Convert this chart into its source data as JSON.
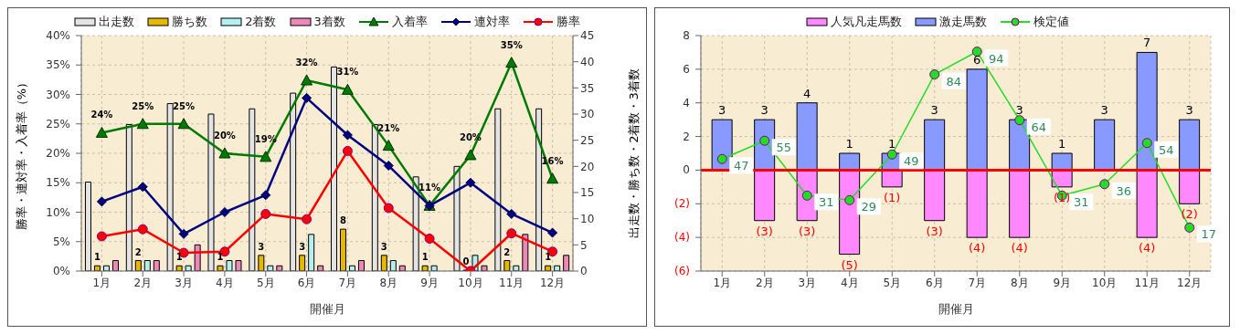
{
  "chart_data": [
    {
      "type": "bar",
      "categories": [
        "1月",
        "2月",
        "3月",
        "4月",
        "5月",
        "6月",
        "7月",
        "8月",
        "9月",
        "10月",
        "11月",
        "12月"
      ],
      "xlabel": "開催月",
      "ylabel": "勝率・連対率・入着率（%）",
      "y2label": "出走数・勝ち数・2着数・3着数",
      "ylim": [
        0,
        40
      ],
      "yticks": [
        {
          "value": 0,
          "label": "0%"
        },
        {
          "value": 5,
          "label": "5%"
        },
        {
          "value": 10,
          "label": "10%"
        },
        {
          "value": 15,
          "label": "15%"
        },
        {
          "value": 20,
          "label": "20%"
        },
        {
          "value": 25,
          "label": "25%"
        },
        {
          "value": 30,
          "label": "30%"
        },
        {
          "value": 35,
          "label": "35%"
        },
        {
          "value": 40,
          "label": "40%"
        }
      ],
      "y2lim": [
        0,
        45
      ],
      "y2ticks": [
        0,
        5,
        10,
        15,
        20,
        25,
        30,
        35,
        40,
        45
      ],
      "grid": true,
      "legend": "top",
      "series": [
        {
          "name": "出走数",
          "color": "#e4e4e4",
          "axis": "y2",
          "values": [
            17,
            28,
            32,
            30,
            31,
            34,
            39,
            28,
            18,
            20,
            31,
            31
          ]
        },
        {
          "name": "勝ち数",
          "color": "#e6b800",
          "axis": "y2",
          "values": [
            1,
            2,
            1,
            1,
            3,
            3,
            8,
            3,
            1,
            0,
            2,
            1
          ],
          "data_labels": true
        },
        {
          "name": "2着数",
          "color": "#b4f0f0",
          "axis": "y2",
          "values": [
            1,
            2,
            1,
            2,
            1,
            7,
            1,
            2,
            1,
            3,
            1,
            1
          ]
        },
        {
          "name": "3着数",
          "color": "#ee88bb",
          "axis": "y2",
          "values": [
            2,
            2,
            5,
            2,
            1,
            1,
            2,
            1,
            0,
            1,
            7,
            3
          ]
        },
        {
          "type": "line",
          "name": "入着率",
          "color": "#007a00",
          "marker": "triangle",
          "values": [
            23.5,
            25,
            25,
            20,
            19.4,
            32.4,
            30.8,
            21.3,
            11.1,
            19.7,
            35.4,
            15.7
          ],
          "value_labels": [
            "24%",
            "25%",
            "25%",
            "20%",
            "19%",
            "32%",
            "31%",
            "21%",
            "11%",
            "20%",
            "35%",
            "16%"
          ]
        },
        {
          "type": "line",
          "name": "連対率",
          "color": "#000080",
          "marker": "diamond",
          "values": [
            11.8,
            14.3,
            6.3,
            10,
            12.9,
            29.4,
            23.1,
            17.9,
            11.1,
            15,
            9.7,
            6.5
          ]
        },
        {
          "type": "line",
          "name": "勝率",
          "color": "#ff0000",
          "marker": "circle",
          "values": [
            5.9,
            7.1,
            3.1,
            3.3,
            9.7,
            8.8,
            20.4,
            10.7,
            5.5,
            0,
            6.4,
            3.3
          ]
        }
      ]
    },
    {
      "type": "bar",
      "stacked": true,
      "categories": [
        "1月",
        "2月",
        "3月",
        "4月",
        "5月",
        "6月",
        "7月",
        "8月",
        "9月",
        "10月",
        "11月",
        "12月"
      ],
      "xlabel": "開催月",
      "ylim": [
        -6,
        8
      ],
      "yticks": [
        {
          "value": -6,
          "label": "(6)"
        },
        {
          "value": -4,
          "label": "(4)"
        },
        {
          "value": -2,
          "label": "(2)"
        },
        0,
        2,
        4,
        6,
        8
      ],
      "y2lim": [
        -2,
        101
      ],
      "tick_labels": [
        "x",
        "y"
      ],
      "grid": true,
      "legend": "top",
      "ref_lines": [
        {
          "axis": "y",
          "value": 0,
          "color": "#ff0000"
        }
      ],
      "series": [
        {
          "name": "人気凡走馬数",
          "color": "#ff88ff",
          "values": [
            null,
            -3,
            -3,
            -5,
            -1,
            -3,
            -4,
            -4,
            -1,
            null,
            -4,
            -2
          ],
          "value_labels": [
            null,
            "(3)",
            "(3)",
            "(5)",
            "(1)",
            "(3)",
            "(4)",
            "(4)",
            "(1)",
            null,
            "(4)",
            "(2)"
          ]
        },
        {
          "name": "激走馬数",
          "color": "#8899ff",
          "values": [
            3,
            3,
            4,
            1,
            1,
            3,
            6,
            3,
            1,
            3,
            7,
            3
          ],
          "data_labels": true
        },
        {
          "type": "line",
          "name": "検定値",
          "color": "#22dd22",
          "axis": "y2",
          "marker": "circle",
          "values": [
            47,
            55,
            31,
            29,
            49,
            84,
            94,
            64,
            31,
            36,
            54,
            17
          ],
          "data_labels": true
        }
      ]
    }
  ]
}
